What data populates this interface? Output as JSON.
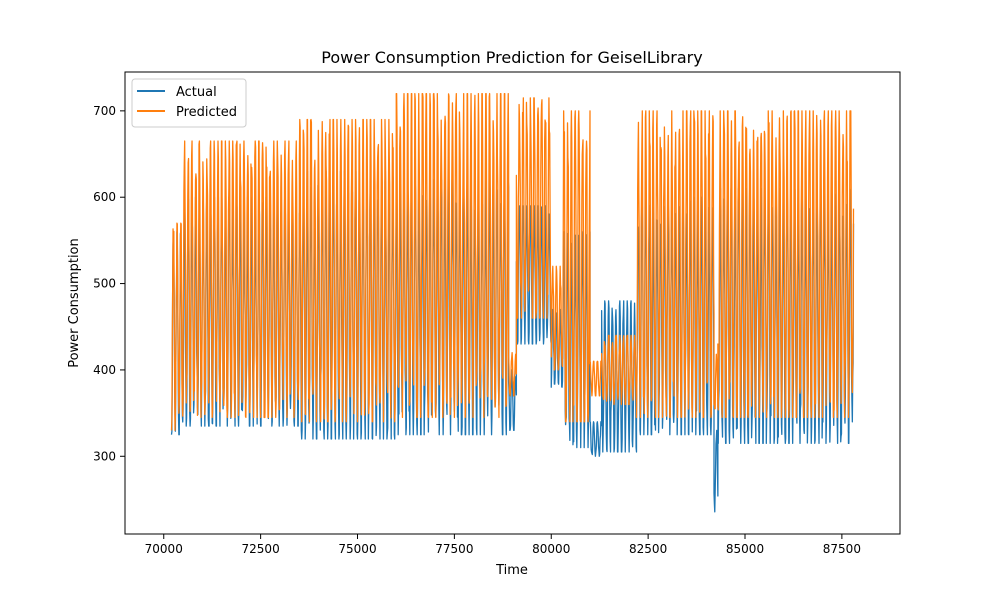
{
  "chart_data": {
    "type": "line",
    "title": "Power Consumption Prediction for GeiselLibrary",
    "xlabel": "Time",
    "ylabel": "Power Consumption",
    "xlim": [
      69000,
      89000
    ],
    "ylim": [
      210,
      745
    ],
    "x_ticks": [
      70000,
      72500,
      75000,
      77500,
      80000,
      82500,
      85000,
      87500
    ],
    "x_tick_labels": [
      "70000",
      "72500",
      "75000",
      "77500",
      "80000",
      "82500",
      "85000",
      "87500"
    ],
    "y_ticks": [
      300,
      400,
      500,
      600,
      700
    ],
    "y_tick_labels": [
      "300",
      "400",
      "500",
      "600",
      "700"
    ],
    "grid": false,
    "legend": "top-left",
    "x_range": [
      70200,
      87800
    ],
    "series": [
      {
        "name": "Actual",
        "color": "#1f77b4",
        "segments": [
          {
            "x_start": 70200,
            "x_end": 70500,
            "low": 325,
            "high": 560
          },
          {
            "x_start": 70500,
            "x_end": 73500,
            "low": 335,
            "high": 600
          },
          {
            "x_start": 73500,
            "x_end": 76000,
            "low": 320,
            "high": 630
          },
          {
            "x_start": 76000,
            "x_end": 78900,
            "low": 325,
            "high": 620
          },
          {
            "x_start": 78900,
            "x_end": 79100,
            "low": 330,
            "high": 400
          },
          {
            "x_start": 79100,
            "x_end": 80000,
            "low": 430,
            "high": 590
          },
          {
            "x_start": 80000,
            "x_end": 80300,
            "low": 380,
            "high": 470
          },
          {
            "x_start": 80300,
            "x_end": 81000,
            "low": 310,
            "high": 560
          },
          {
            "x_start": 81000,
            "x_end": 81300,
            "low": 300,
            "high": 340
          },
          {
            "x_start": 81300,
            "x_end": 82200,
            "low": 305,
            "high": 480
          },
          {
            "x_start": 82200,
            "x_end": 84200,
            "low": 325,
            "high": 600
          },
          {
            "x_start": 84200,
            "x_end": 84300,
            "low": 232,
            "high": 330
          },
          {
            "x_start": 84300,
            "x_end": 87800,
            "low": 315,
            "high": 610
          }
        ]
      },
      {
        "name": "Predicted",
        "color": "#ff7f0e",
        "segments": [
          {
            "x_start": 70200,
            "x_end": 70500,
            "low": 330,
            "high": 570
          },
          {
            "x_start": 70500,
            "x_end": 73500,
            "low": 345,
            "high": 665
          },
          {
            "x_start": 73500,
            "x_end": 76000,
            "low": 340,
            "high": 690
          },
          {
            "x_start": 76000,
            "x_end": 78900,
            "low": 345,
            "high": 720
          },
          {
            "x_start": 78900,
            "x_end": 79100,
            "low": 370,
            "high": 420
          },
          {
            "x_start": 79100,
            "x_end": 80000,
            "low": 460,
            "high": 715
          },
          {
            "x_start": 80000,
            "x_end": 80300,
            "low": 400,
            "high": 520
          },
          {
            "x_start": 80300,
            "x_end": 81000,
            "low": 340,
            "high": 700
          },
          {
            "x_start": 81000,
            "x_end": 81300,
            "low": 370,
            "high": 410
          },
          {
            "x_start": 81300,
            "x_end": 82200,
            "low": 360,
            "high": 440
          },
          {
            "x_start": 82200,
            "x_end": 84200,
            "low": 345,
            "high": 700
          },
          {
            "x_start": 84200,
            "x_end": 84300,
            "low": 350,
            "high": 420
          },
          {
            "x_start": 84300,
            "x_end": 87800,
            "low": 345,
            "high": 700
          }
        ]
      }
    ]
  }
}
